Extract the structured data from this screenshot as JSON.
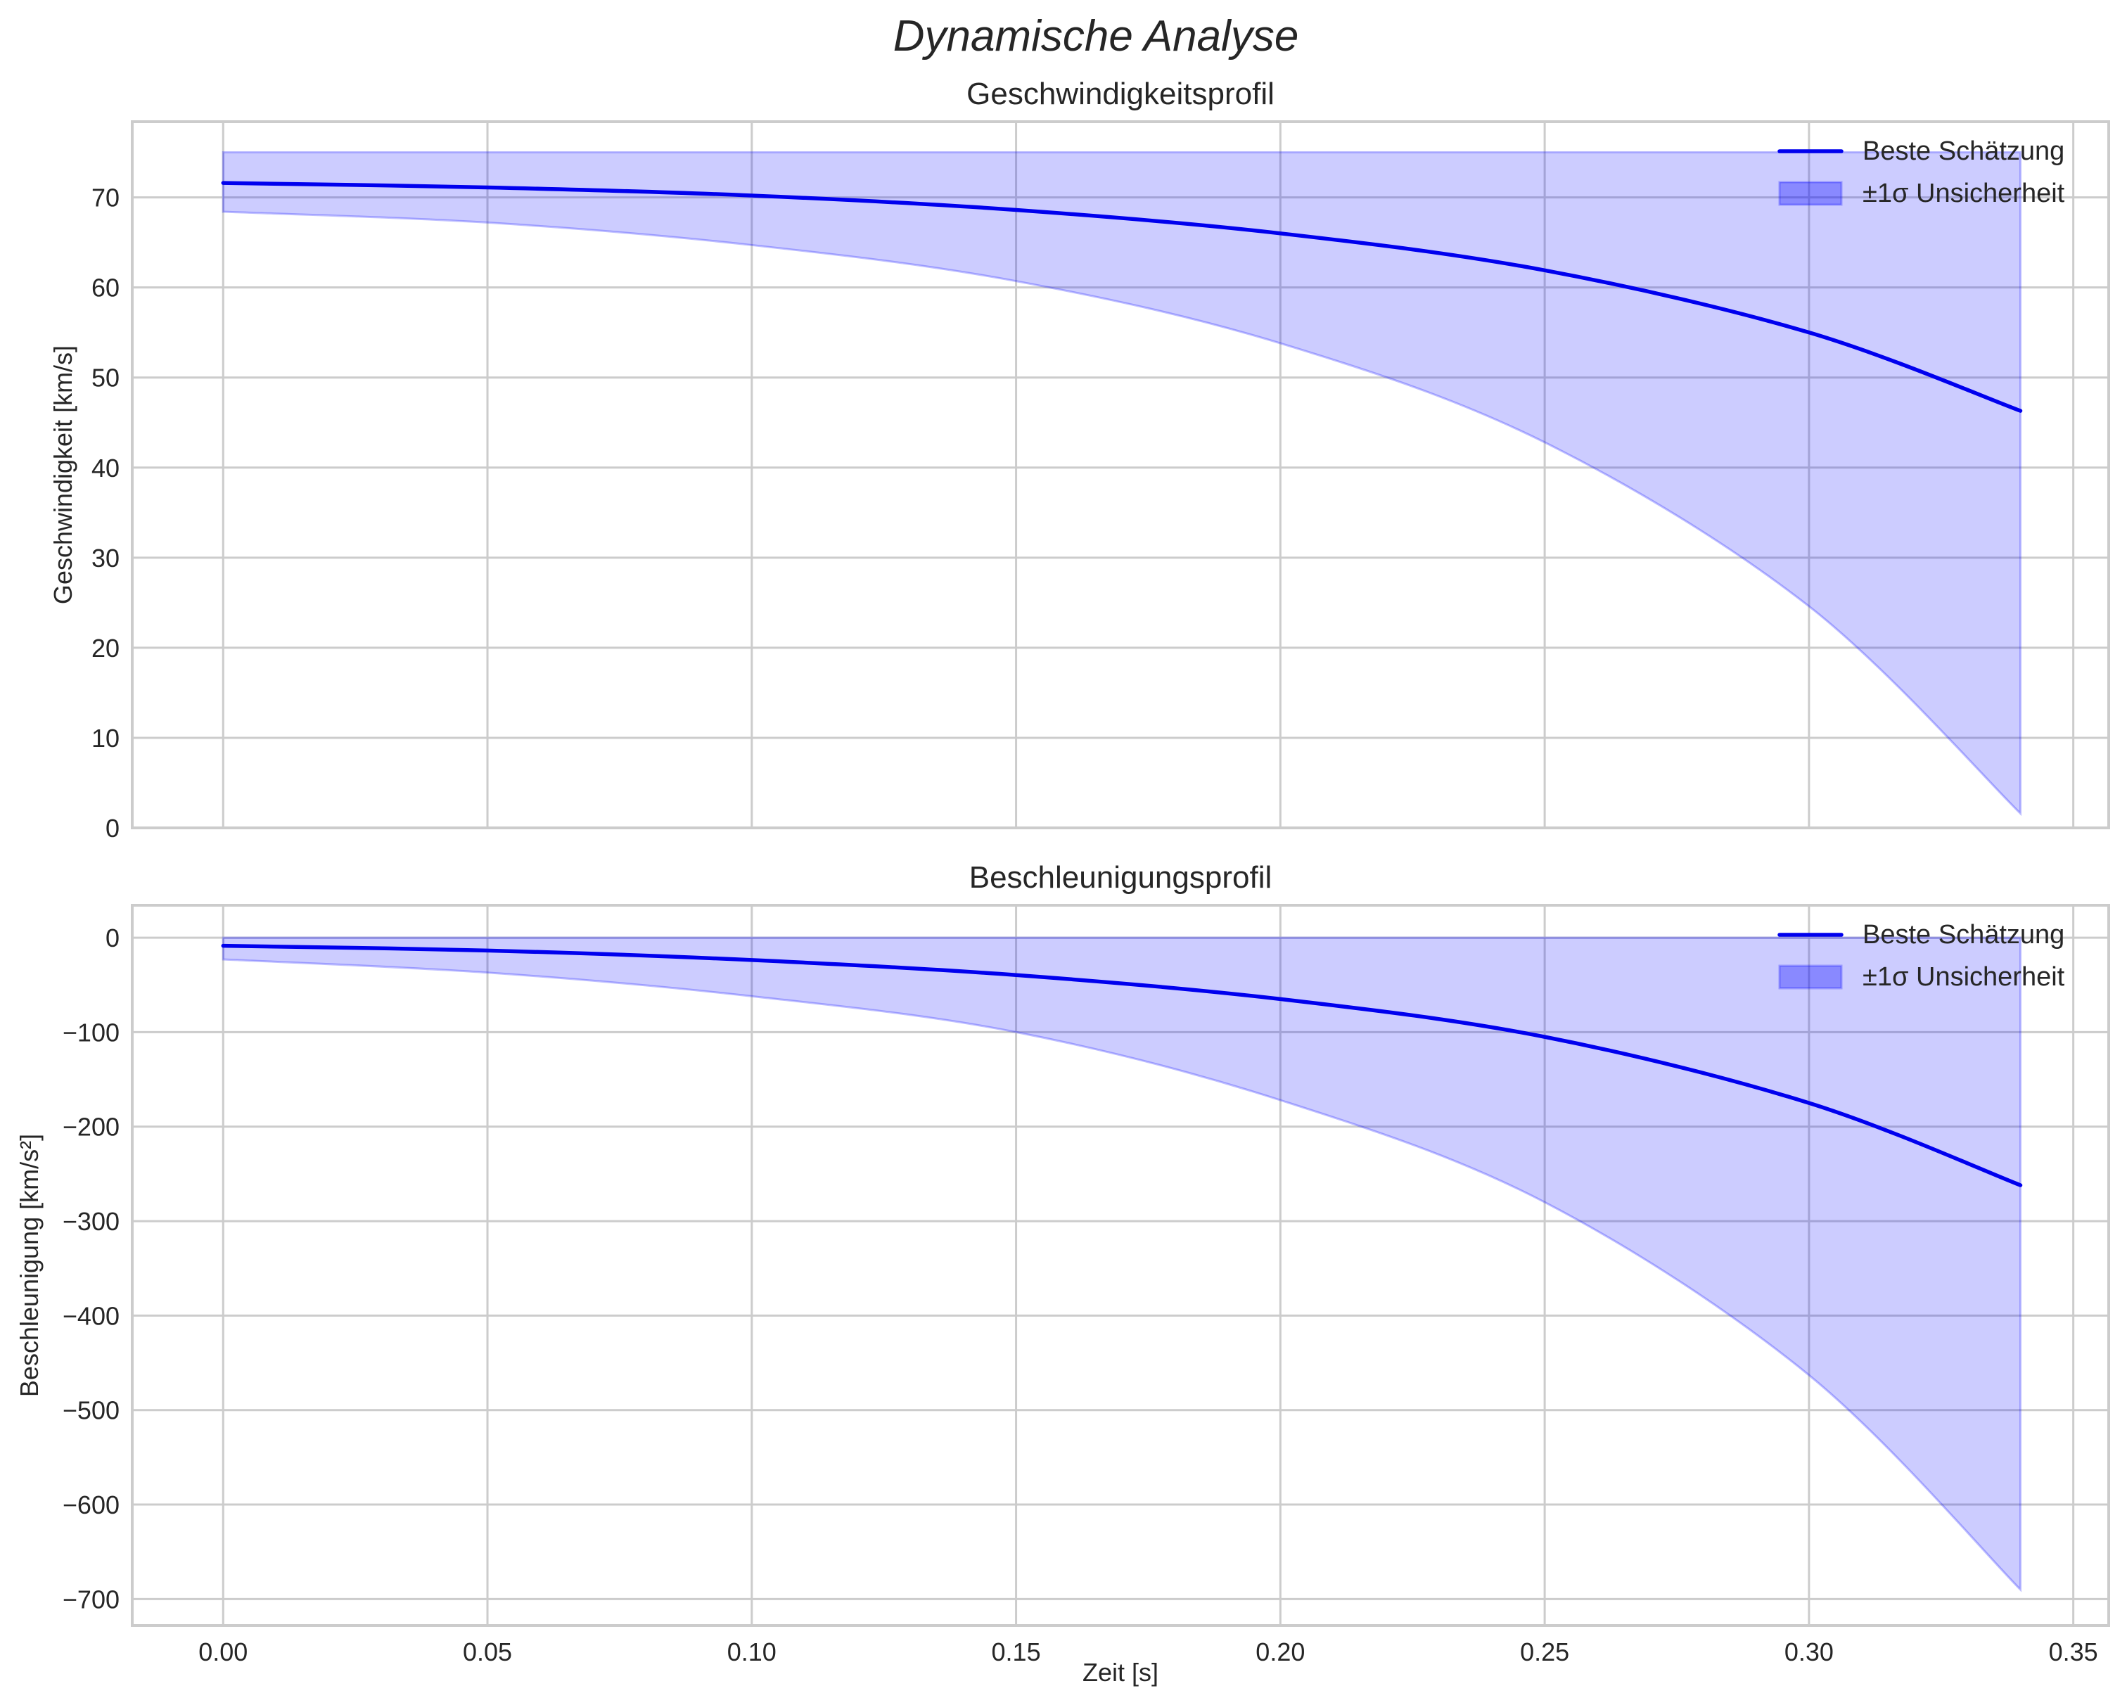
{
  "figure": {
    "suptitle": "Dynamische Analyse"
  },
  "colors": {
    "line": "#0000ee",
    "band_fill": "#0000ff",
    "band_alpha": 0.2,
    "grid": "#cccccc",
    "spine": "#cccccc",
    "text": "#262626"
  },
  "chart_data": [
    {
      "type": "line",
      "title": "Geschwindigkeitsprofil",
      "xlabel": "",
      "ylabel": "Geschwindigkeit [km/s]",
      "xlim": [
        -0.0172,
        0.3567
      ],
      "ylim": [
        0,
        78.4
      ],
      "xticks": [
        0.0,
        0.05,
        0.1,
        0.15,
        0.2,
        0.25,
        0.3,
        0.35
      ],
      "xtick_labels": [],
      "yticks": [
        0,
        10,
        20,
        30,
        40,
        50,
        60,
        70
      ],
      "ytick_labels": [
        "0",
        "10",
        "20",
        "30",
        "40",
        "50",
        "60",
        "70"
      ],
      "grid": true,
      "legend": {
        "position": "upper right",
        "entries": [
          "Beste Schätzung",
          "±1σ Unsicherheit"
        ]
      },
      "x": [
        0.0,
        0.05,
        0.1,
        0.15,
        0.2,
        0.25,
        0.3,
        0.34
      ],
      "series": [
        {
          "name": "Beste Schätzung",
          "kind": "line",
          "values": [
            71.6,
            71.1,
            70.2,
            68.6,
            66.0,
            61.9,
            55.0,
            46.3
          ]
        },
        {
          "name": "±1σ Unsicherheit",
          "kind": "band",
          "lower": [
            68.4,
            67.2,
            64.7,
            60.7,
            53.8,
            42.8,
            24.6,
            1.6
          ],
          "upper": [
            75.0,
            75.0,
            75.0,
            75.0,
            75.0,
            75.0,
            75.0,
            75.0
          ]
        }
      ]
    },
    {
      "type": "line",
      "title": "Beschleunigungsprofil",
      "xlabel": "Zeit [s]",
      "ylabel": "Beschleunigung [km/s²]",
      "xlim": [
        -0.0172,
        0.3567
      ],
      "ylim": [
        -728,
        34.3
      ],
      "xticks": [
        0.0,
        0.05,
        0.1,
        0.15,
        0.2,
        0.25,
        0.3,
        0.35
      ],
      "xtick_labels": [
        "0.00",
        "0.05",
        "0.10",
        "0.15",
        "0.20",
        "0.25",
        "0.30",
        "0.35"
      ],
      "yticks": [
        0,
        -100,
        -200,
        -300,
        -400,
        -500,
        -600,
        -700
      ],
      "ytick_labels": [
        "0",
        "−100",
        "−200",
        "−300",
        "−400",
        "−500",
        "−600",
        "−700"
      ],
      "grid": true,
      "legend": {
        "position": "upper right",
        "entries": [
          "Beste Schätzung",
          "±1σ Unsicherheit"
        ]
      },
      "x": [
        0.0,
        0.05,
        0.1,
        0.15,
        0.2,
        0.25,
        0.3,
        0.34
      ],
      "series": [
        {
          "name": "Beste Schätzung",
          "kind": "line",
          "values": [
            -8.6,
            -13.6,
            -23.7,
            -39.6,
            -65.0,
            -105.0,
            -175.0,
            -262.0
          ]
        },
        {
          "name": "±1σ Unsicherheit",
          "kind": "band",
          "lower": [
            -23.0,
            -37.0,
            -62.0,
            -100.0,
            -172.0,
            -280.0,
            -463.0,
            -690.0
          ],
          "upper": [
            0,
            0,
            0,
            0,
            0,
            0,
            0,
            0
          ]
        }
      ]
    }
  ]
}
